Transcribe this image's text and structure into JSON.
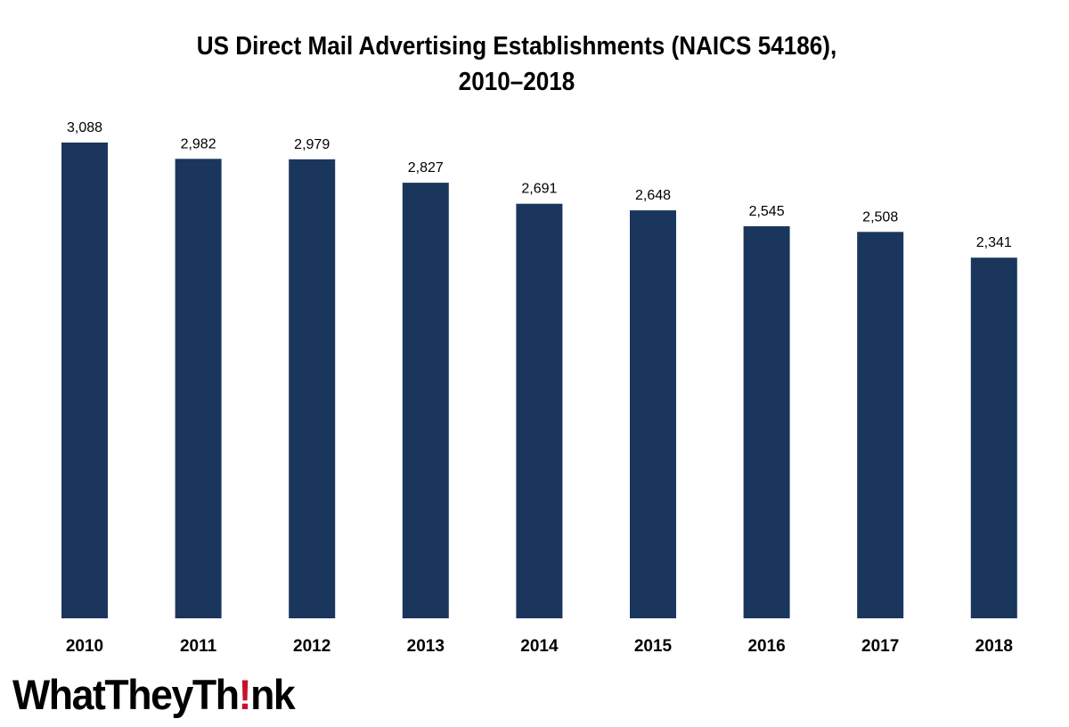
{
  "chart_data": {
    "type": "bar",
    "title_lines": [
      "US Direct Mail Advertising Establishments (NAICS 54186),",
      "2010–2018"
    ],
    "categories": [
      "2010",
      "2011",
      "2012",
      "2013",
      "2014",
      "2015",
      "2016",
      "2017",
      "2018"
    ],
    "values": [
      3088,
      2982,
      2979,
      2827,
      2691,
      2648,
      2545,
      2508,
      2341
    ],
    "data_labels": [
      "3,088",
      "2,982",
      "2,979",
      "2,827",
      "2,691",
      "2,648",
      "2,545",
      "2,508",
      "2,341"
    ],
    "xlabel": "",
    "ylabel": "",
    "ylim": [
      0,
      3088
    ],
    "grid": false,
    "legend": "none",
    "bar_color": "#1b365d"
  },
  "branding": {
    "logo_part1": "WhatTheyTh",
    "logo_bang": "!",
    "logo_part2": "nk",
    "bang_color": "#c8102e"
  }
}
